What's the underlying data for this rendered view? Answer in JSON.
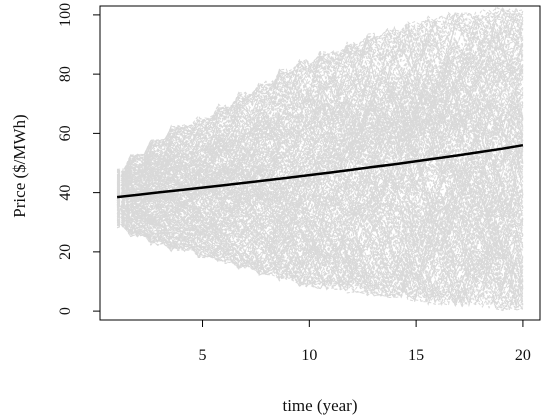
{
  "chart_data": {
    "type": "line",
    "title": "",
    "xlabel": "time (year)",
    "ylabel": "Price ($/MWh)",
    "xlim": [
      0.2,
      20.8
    ],
    "ylim": [
      -3,
      103
    ],
    "x_ticks": [
      5,
      10,
      15,
      20
    ],
    "y_ticks": [
      0,
      20,
      40,
      60,
      80,
      100
    ],
    "grid": false,
    "legend": "none",
    "series": [
      {
        "style": "solid",
        "color": "#000000",
        "x": [
          1,
          2,
          3,
          4,
          5,
          6,
          7,
          8,
          9,
          10,
          11,
          12,
          13,
          14,
          15,
          16,
          17,
          18,
          19,
          20
        ],
        "y": [
          38.5,
          39.3,
          40.1,
          40.9,
          41.7,
          42.5,
          43.3,
          44.2,
          45.0,
          45.9,
          46.8,
          47.7,
          48.7,
          49.6,
          50.6,
          51.6,
          52.6,
          53.7,
          54.8,
          56.0
        ]
      }
    ],
    "simulated_paths": {
      "style": "dashed",
      "color": "#d9d9d9",
      "count": 1000,
      "x_start": 1,
      "x_end": 20,
      "start_range": [
        28,
        48
      ],
      "envelope_low": [
        28,
        25,
        22,
        20,
        18,
        16,
        14,
        12,
        10,
        8,
        7,
        6,
        5,
        4,
        3,
        2,
        1,
        1,
        0,
        0
      ],
      "envelope_high": [
        48,
        53,
        58,
        63,
        66,
        70,
        74,
        78,
        82,
        85,
        88,
        91,
        94,
        96,
        98,
        100,
        101,
        102,
        103,
        103
      ]
    }
  }
}
